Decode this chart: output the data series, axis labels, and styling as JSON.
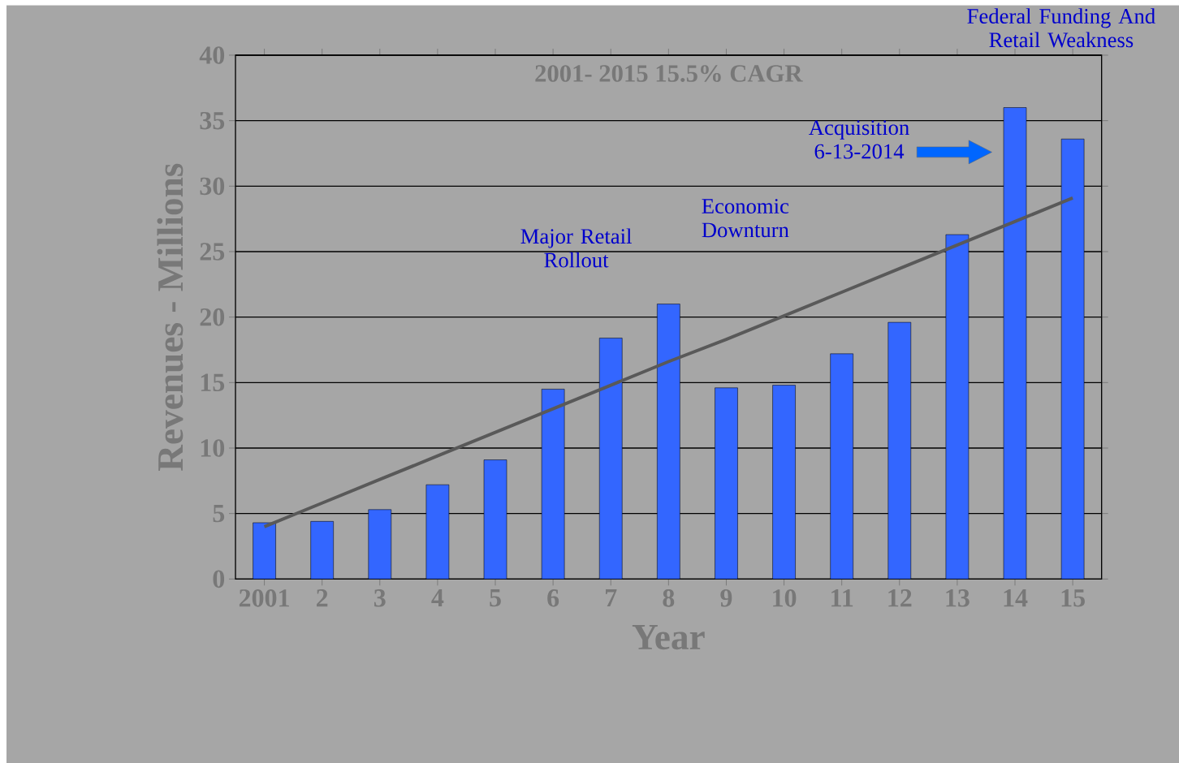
{
  "chart_data": {
    "type": "bar",
    "title": "2001- 2015 15.5% CAGR",
    "xlabel": "Year",
    "ylabel": "Revenues - Millions",
    "categories": [
      "2001",
      "2",
      "3",
      "4",
      "5",
      "6",
      "7",
      "8",
      "9",
      "10",
      "11",
      "12",
      "13",
      "14",
      "15"
    ],
    "series": [
      {
        "color": "#3366ff",
        "values": [
          4.3,
          4.4,
          5.3,
          7.2,
          9.1,
          14.5,
          18.4,
          21.0,
          14.6,
          14.8,
          17.2,
          19.6,
          26.3,
          36.0,
          33.6
        ]
      },
      {
        "type": "line",
        "color": "#595959",
        "values": [
          4.0,
          5.8,
          7.6,
          9.4,
          11.2,
          13.0,
          14.8,
          16.6,
          18.3,
          20.1,
          21.9,
          23.7,
          25.5,
          27.3,
          29.1
        ]
      }
    ],
    "ylim": [
      0,
      40
    ],
    "yticks": [
      0,
      5,
      10,
      15,
      20,
      25,
      30,
      35,
      40
    ],
    "grid": "y",
    "annotations": [
      "Major Retail Rollout",
      "Economic Downturn",
      "Acquisition 6-13-2014",
      "Federal Funding And Retail Weakness"
    ]
  }
}
